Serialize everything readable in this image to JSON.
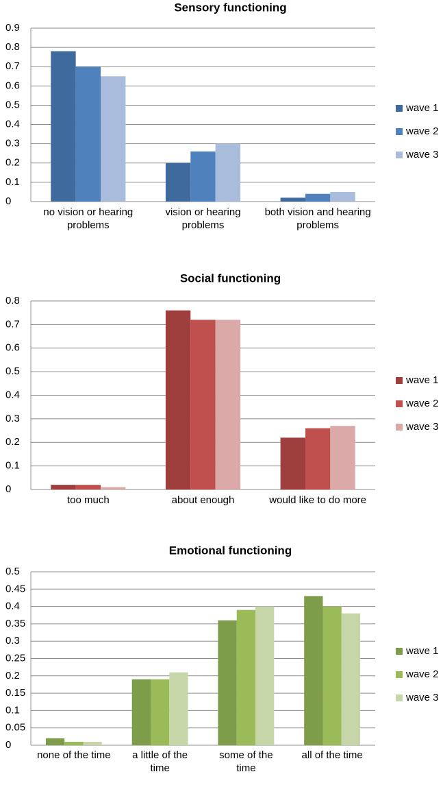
{
  "chart_data": [
    {
      "type": "bar",
      "title": "Sensory functioning",
      "categories": [
        "no vision or hearing problems",
        "vision or hearing problems",
        "both vision and hearing problems"
      ],
      "series": [
        {
          "name": "wave 1",
          "color": "#3E6A9E",
          "values": [
            0.78,
            0.2,
            0.02
          ]
        },
        {
          "name": "wave 2",
          "color": "#4F81BD",
          "values": [
            0.7,
            0.26,
            0.04
          ]
        },
        {
          "name": "wave 3",
          "color": "#A9BCDC",
          "values": [
            0.65,
            0.3,
            0.05
          ]
        }
      ],
      "ylim": [
        0,
        0.9
      ],
      "yticks": [
        0,
        0.1,
        0.2,
        0.3,
        0.4,
        0.5,
        0.6,
        0.7,
        0.8,
        0.9
      ],
      "grid": true,
      "legend": "right"
    },
    {
      "type": "bar",
      "title": "Social functioning",
      "categories": [
        "too much",
        "about enough",
        "would like to do more"
      ],
      "series": [
        {
          "name": "wave 1",
          "color": "#9E3F3E",
          "values": [
            0.02,
            0.76,
            0.22
          ]
        },
        {
          "name": "wave 2",
          "color": "#C0504D",
          "values": [
            0.02,
            0.72,
            0.26
          ]
        },
        {
          "name": "wave 3",
          "color": "#DBA9A8",
          "values": [
            0.01,
            0.72,
            0.27
          ]
        }
      ],
      "ylim": [
        0,
        0.8
      ],
      "yticks": [
        0,
        0.1,
        0.2,
        0.3,
        0.4,
        0.5,
        0.6,
        0.7,
        0.8
      ],
      "grid": true,
      "legend": "right"
    },
    {
      "type": "bar",
      "title": "Emotional functioning",
      "categories": [
        "none of the time",
        "a little of the time",
        "some of the time",
        "all of the time"
      ],
      "series": [
        {
          "name": "wave 1",
          "color": "#7E9D4A",
          "values": [
            0.02,
            0.19,
            0.36,
            0.43
          ]
        },
        {
          "name": "wave 2",
          "color": "#9BBB59",
          "values": [
            0.01,
            0.19,
            0.39,
            0.4
          ]
        },
        {
          "name": "wave 3",
          "color": "#C6D6A9",
          "values": [
            0.01,
            0.21,
            0.4,
            0.38
          ]
        }
      ],
      "ylim": [
        0,
        0.5
      ],
      "yticks": [
        0,
        0.05,
        0.1,
        0.15,
        0.2,
        0.25,
        0.3,
        0.35,
        0.4,
        0.45,
        0.5
      ],
      "grid": true,
      "legend": "right"
    }
  ]
}
